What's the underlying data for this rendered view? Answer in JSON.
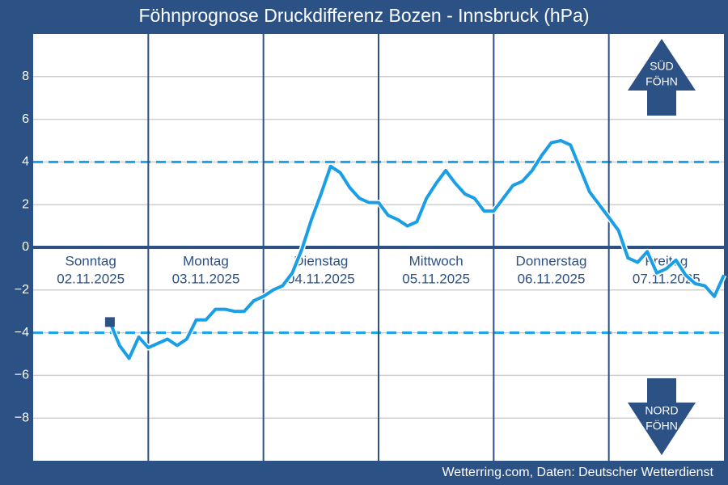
{
  "chart_data": {
    "type": "line",
    "title": "Föhnprognose Druckdifferenz Bozen - Innsbruck (hPa)",
    "source": "Wetterring.com, Daten: Deutscher Wetterdienst",
    "days": [
      {
        "name": "Sonntag",
        "date": "02.11.2025"
      },
      {
        "name": "Montag",
        "date": "03.11.2025"
      },
      {
        "name": "Dienstag",
        "date": "04.11.2025"
      },
      {
        "name": "Mittwoch",
        "date": "05.11.2025"
      },
      {
        "name": "Donnerstag",
        "date": "06.11.2025"
      },
      {
        "name": "Freitag",
        "date": "07.11.2025"
      }
    ],
    "series": [
      {
        "color": "#1a9fe6",
        "values": [
          null,
          null,
          null,
          null,
          null,
          null,
          null,
          null,
          -3.5,
          -4.6,
          -5.2,
          -4.2,
          -4.7,
          -4.5,
          -4.3,
          -4.6,
          -4.3,
          -3.4,
          -3.4,
          -2.9,
          -2.9,
          -3.0,
          -3.0,
          -2.5,
          -2.3,
          -2.0,
          -1.8,
          -1.2,
          -0.1,
          1.3,
          2.5,
          3.8,
          3.5,
          2.8,
          2.3,
          2.1,
          2.1,
          1.5,
          1.3,
          1.0,
          1.2,
          2.3,
          3.0,
          3.6,
          3.0,
          2.5,
          2.3,
          1.7,
          1.7,
          2.3,
          2.9,
          3.1,
          3.6,
          4.3,
          4.9,
          5.0,
          4.8,
          3.7,
          2.6,
          2.0,
          1.4,
          0.8,
          -0.5,
          -0.7,
          -0.2,
          -1.2,
          -1.0,
          -0.6,
          -1.3,
          -1.7,
          -1.8,
          -2.3,
          -1.3
        ]
      }
    ],
    "ylim": [
      -10,
      10
    ],
    "yticks": [
      {
        "value": -8,
        "label": "−8"
      },
      {
        "value": -6,
        "label": "−6"
      },
      {
        "value": -4,
        "label": "−4"
      },
      {
        "value": -2,
        "label": "−2"
      },
      0,
      2,
      4,
      6,
      8
    ],
    "thresholds": [
      4,
      -4
    ],
    "grid": true,
    "arrows": {
      "up": [
        "SÜD",
        "FÖHN"
      ],
      "down": [
        "NORD",
        "FÖHN"
      ]
    }
  }
}
